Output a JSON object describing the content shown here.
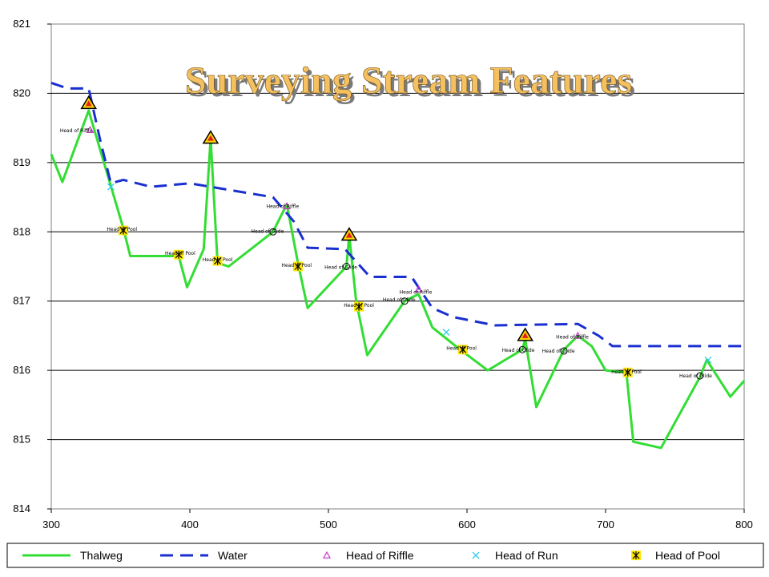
{
  "chart_data": {
    "type": "line",
    "title": "Surveying Stream Features",
    "xlabel": "",
    "ylabel": "",
    "xlim": [
      300,
      800
    ],
    "ylim": [
      814,
      821
    ],
    "x_ticks": [
      "300",
      "400",
      "500",
      "600",
      "700",
      "800"
    ],
    "y_ticks": [
      "814",
      "815",
      "816",
      "817",
      "818",
      "819",
      "820",
      "821"
    ],
    "grid": "horizontal",
    "legend_position": "bottom",
    "series": [
      {
        "name": "Thalweg",
        "color": "#33dd33",
        "style": "solid",
        "points": [
          [
            297,
            819.12
          ],
          [
            308,
            818.72
          ],
          [
            327,
            819.75
          ],
          [
            352,
            818.05
          ],
          [
            357,
            817.65
          ],
          [
            392,
            817.65
          ],
          [
            398,
            817.2
          ],
          [
            410,
            817.75
          ],
          [
            415,
            819.35
          ],
          [
            420,
            817.55
          ],
          [
            428,
            817.5
          ],
          [
            460,
            818
          ],
          [
            470,
            818.4
          ],
          [
            478,
            817.55
          ],
          [
            485,
            816.9
          ],
          [
            513,
            817.5
          ],
          [
            515,
            817.95
          ],
          [
            520,
            817
          ],
          [
            528,
            816.22
          ],
          [
            555,
            817
          ],
          [
            565,
            817.1
          ],
          [
            575,
            816.62
          ],
          [
            595,
            816.3
          ],
          [
            615,
            816
          ],
          [
            640,
            816.3
          ],
          [
            642,
            816.45
          ],
          [
            650,
            815.47
          ],
          [
            670,
            816.3
          ],
          [
            680,
            816.5
          ],
          [
            690,
            816.35
          ],
          [
            700,
            816
          ],
          [
            715,
            815.97
          ],
          [
            720,
            814.97
          ],
          [
            740,
            814.88
          ],
          [
            768,
            815.9
          ],
          [
            773,
            816.15
          ],
          [
            790,
            815.62
          ],
          [
            800,
            815.85
          ]
        ]
      },
      {
        "name": "Water",
        "color": "#1a2fd0",
        "style": "dashed",
        "points": [
          [
            297,
            820.15
          ],
          [
            312,
            820.07
          ],
          [
            327,
            820.07
          ],
          [
            335,
            819.35
          ],
          [
            343,
            818.7
          ],
          [
            352,
            818.75
          ],
          [
            372,
            818.65
          ],
          [
            400,
            818.7
          ],
          [
            430,
            818.6
          ],
          [
            460,
            818.5
          ],
          [
            475,
            818.15
          ],
          [
            485,
            817.77
          ],
          [
            512,
            817.75
          ],
          [
            520,
            817.57
          ],
          [
            530,
            817.35
          ],
          [
            560,
            817.35
          ],
          [
            575,
            816.9
          ],
          [
            590,
            816.77
          ],
          [
            620,
            816.65
          ],
          [
            680,
            816.67
          ],
          [
            695,
            816.5
          ],
          [
            705,
            816.35
          ],
          [
            800,
            816.35
          ]
        ]
      },
      {
        "name": "Head of Riffle",
        "color": "#cc33cc",
        "marker": "triangle",
        "points": [
          [
            328,
            819.47
          ],
          [
            470,
            818.37
          ],
          [
            565,
            817.17
          ],
          [
            680,
            816.5
          ]
        ]
      },
      {
        "name": "Head of Run",
        "color": "#33ccee",
        "marker": "x",
        "points": [
          [
            343,
            818.65
          ],
          [
            585,
            816.55
          ],
          [
            774,
            816.15
          ]
        ]
      },
      {
        "name": "Head of Pool",
        "color": "#000000",
        "marker": "asterisk-square",
        "points": [
          [
            352,
            818.02
          ],
          [
            392,
            817.67
          ],
          [
            420,
            817.58
          ],
          [
            478,
            817.5
          ],
          [
            522,
            816.92
          ],
          [
            597,
            816.3
          ],
          [
            716,
            815.97
          ]
        ]
      }
    ],
    "warning_markers": [
      [
        327,
        819.85
      ],
      [
        415,
        819.35
      ],
      [
        515,
        817.95
      ],
      [
        642,
        816.5
      ]
    ],
    "circle_markers": [
      [
        460,
        818
      ],
      [
        513,
        817.5
      ],
      [
        555,
        817
      ],
      [
        640,
        816.3
      ],
      [
        670,
        816.28
      ],
      [
        768,
        815.92
      ]
    ],
    "annotations": [
      {
        "text": "Head of Riffle",
        "x": 318,
        "y": 819.46
      },
      {
        "text": "Head of Riffle",
        "x": 467,
        "y": 818.37
      },
      {
        "text": "Head of Riffle",
        "x": 563,
        "y": 817.13
      },
      {
        "text": "Head of Riffle",
        "x": 676,
        "y": 816.48
      },
      {
        "text": "Head of Pool",
        "x": 351,
        "y": 818.04
      },
      {
        "text": "Head of Pool",
        "x": 393,
        "y": 817.69
      },
      {
        "text": "Head of Pool",
        "x": 420,
        "y": 817.6
      },
      {
        "text": "Head of Pool",
        "x": 477,
        "y": 817.52
      },
      {
        "text": "Head of Pool",
        "x": 522,
        "y": 816.94
      },
      {
        "text": "Head of Pool",
        "x": 596,
        "y": 816.32
      },
      {
        "text": "Head of Pool",
        "x": 715,
        "y": 815.98
      },
      {
        "text": "Head of Glide",
        "x": 456,
        "y": 818.01
      },
      {
        "text": "Head of Glide",
        "x": 509,
        "y": 817.49
      },
      {
        "text": "Head of Glide",
        "x": 551,
        "y": 817.02
      },
      {
        "text": "Head of Glide",
        "x": 637,
        "y": 816.29
      },
      {
        "text": "Head of Glide",
        "x": 666,
        "y": 816.28
      },
      {
        "text": "Head of Glide",
        "x": 765,
        "y": 815.92
      }
    ]
  }
}
